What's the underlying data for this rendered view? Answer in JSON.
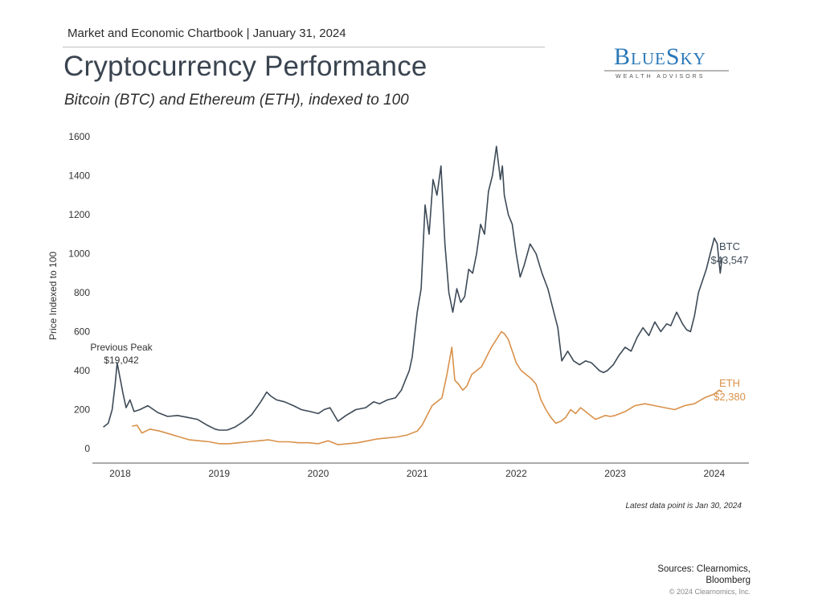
{
  "header": {
    "kicker": "Market and Economic Chartbook | January 31, 2024",
    "title": "Cryptocurrency Performance",
    "subtitle": "Bitcoin (BTC) and Ethereum (ETH), indexed to 100"
  },
  "logo": {
    "name": "BlueSky",
    "tagline": "WEALTH ADVISORS"
  },
  "footer": {
    "note": "Latest data point is Jan 30, 2024",
    "sources_line1": "Sources: Clearnomics,",
    "sources_line2": "Bloomberg",
    "copyright": "© 2024 Clearnomics, Inc."
  },
  "chart_data": {
    "type": "line",
    "title": "",
    "xlabel": "",
    "ylabel": "Price Indexed to 100",
    "xlim": [
      2017.72,
      2024.35
    ],
    "ylim": [
      0,
      1600
    ],
    "y_ticks": [
      0,
      200,
      400,
      600,
      800,
      1000,
      1200,
      1400,
      1600
    ],
    "x_ticks": [
      {
        "value": 2018.0,
        "label": "2018"
      },
      {
        "value": 2019.0,
        "label": "2019"
      },
      {
        "value": 2020.0,
        "label": "2020"
      },
      {
        "value": 2021.0,
        "label": "2021"
      },
      {
        "value": 2022.0,
        "label": "2022"
      },
      {
        "value": 2023.0,
        "label": "2023"
      },
      {
        "value": 2024.0,
        "label": "2024"
      }
    ],
    "grid": false,
    "colors": {
      "BTC": "#3d4a57",
      "ETH": "#d9914a"
    },
    "series": [
      {
        "name": "BTC",
        "x": [
          2017.83,
          2017.88,
          2017.92,
          2017.95,
          2017.97,
          2018.0,
          2018.03,
          2018.06,
          2018.1,
          2018.14,
          2018.2,
          2018.28,
          2018.38,
          2018.48,
          2018.58,
          2018.68,
          2018.78,
          2018.88,
          2018.96,
          2019.0,
          2019.08,
          2019.16,
          2019.25,
          2019.33,
          2019.42,
          2019.48,
          2019.52,
          2019.58,
          2019.66,
          2019.75,
          2019.83,
          2019.92,
          2020.0,
          2020.06,
          2020.12,
          2020.2,
          2020.28,
          2020.38,
          2020.48,
          2020.56,
          2020.62,
          2020.7,
          2020.78,
          2020.84,
          2020.88,
          2020.92,
          2020.95,
          2021.0,
          2021.04,
          2021.08,
          2021.12,
          2021.16,
          2021.2,
          2021.24,
          2021.28,
          2021.32,
          2021.36,
          2021.4,
          2021.44,
          2021.48,
          2021.52,
          2021.56,
          2021.6,
          2021.64,
          2021.68,
          2021.72,
          2021.76,
          2021.8,
          2021.84,
          2021.86,
          2021.88,
          2021.92,
          2021.96,
          2022.0,
          2022.04,
          2022.08,
          2022.14,
          2022.2,
          2022.26,
          2022.32,
          2022.38,
          2022.42,
          2022.46,
          2022.52,
          2022.58,
          2022.64,
          2022.7,
          2022.76,
          2022.8,
          2022.84,
          2022.88,
          2022.92,
          2022.98,
          2023.04,
          2023.1,
          2023.16,
          2023.22,
          2023.28,
          2023.34,
          2023.4,
          2023.46,
          2023.52,
          2023.56,
          2023.62,
          2023.68,
          2023.72,
          2023.76,
          2023.8,
          2023.84,
          2023.88,
          2023.92,
          2023.96,
          2024.0,
          2024.03,
          2024.06,
          2024.08
        ],
        "y": [
          110,
          130,
          200,
          330,
          440,
          360,
          280,
          210,
          250,
          190,
          200,
          220,
          185,
          165,
          170,
          160,
          150,
          120,
          100,
          95,
          95,
          110,
          140,
          175,
          240,
          290,
          270,
          250,
          240,
          220,
          200,
          190,
          180,
          200,
          210,
          140,
          170,
          200,
          210,
          240,
          230,
          250,
          260,
          300,
          350,
          400,
          470,
          700,
          820,
          1250,
          1100,
          1380,
          1300,
          1450,
          1050,
          800,
          700,
          820,
          750,
          780,
          920,
          900,
          1000,
          1150,
          1100,
          1320,
          1400,
          1550,
          1380,
          1450,
          1300,
          1200,
          1150,
          1000,
          880,
          940,
          1050,
          1000,
          900,
          820,
          700,
          620,
          450,
          500,
          450,
          430,
          450,
          440,
          420,
          400,
          390,
          400,
          430,
          480,
          520,
          500,
          570,
          620,
          580,
          650,
          600,
          640,
          630,
          700,
          640,
          610,
          600,
          680,
          800,
          860,
          920,
          1000,
          1080,
          1050,
          900,
          980
        ]
      },
      {
        "name": "ETH",
        "x": [
          2018.12,
          2018.17,
          2018.22,
          2018.3,
          2018.4,
          2018.5,
          2018.6,
          2018.7,
          2018.8,
          2018.9,
          2019.0,
          2019.1,
          2019.2,
          2019.3,
          2019.4,
          2019.5,
          2019.6,
          2019.7,
          2019.8,
          2019.9,
          2020.0,
          2020.1,
          2020.2,
          2020.3,
          2020.4,
          2020.5,
          2020.6,
          2020.7,
          2020.8,
          2020.9,
          2021.0,
          2021.05,
          2021.1,
          2021.15,
          2021.2,
          2021.25,
          2021.3,
          2021.35,
          2021.38,
          2021.42,
          2021.46,
          2021.5,
          2021.55,
          2021.6,
          2021.65,
          2021.7,
          2021.75,
          2021.8,
          2021.85,
          2021.88,
          2021.92,
          2021.96,
          2022.0,
          2022.05,
          2022.1,
          2022.15,
          2022.2,
          2022.25,
          2022.3,
          2022.35,
          2022.4,
          2022.45,
          2022.5,
          2022.55,
          2022.6,
          2022.65,
          2022.7,
          2022.75,
          2022.8,
          2022.85,
          2022.9,
          2022.95,
          2023.0,
          2023.1,
          2023.2,
          2023.3,
          2023.4,
          2023.5,
          2023.6,
          2023.7,
          2023.8,
          2023.9,
          2024.0,
          2024.05,
          2024.08
        ],
        "y": [
          115,
          120,
          80,
          100,
          90,
          75,
          60,
          45,
          40,
          35,
          25,
          25,
          30,
          35,
          40,
          45,
          35,
          35,
          30,
          30,
          25,
          40,
          20,
          25,
          30,
          40,
          50,
          55,
          60,
          70,
          90,
          120,
          170,
          220,
          240,
          260,
          380,
          520,
          350,
          330,
          300,
          320,
          380,
          400,
          420,
          470,
          520,
          560,
          600,
          590,
          560,
          500,
          440,
          400,
          380,
          360,
          330,
          250,
          200,
          160,
          130,
          140,
          160,
          200,
          180,
          210,
          190,
          170,
          150,
          160,
          170,
          165,
          170,
          190,
          220,
          230,
          220,
          210,
          200,
          220,
          230,
          260,
          280,
          300,
          290
        ]
      }
    ],
    "annotations": {
      "previous_peak_line1": "Previous Peak",
      "previous_peak_line2": "$19,042",
      "btc_label": "BTC",
      "btc_value": "$43,547",
      "eth_label": "ETH",
      "eth_value": "$2,380"
    }
  }
}
